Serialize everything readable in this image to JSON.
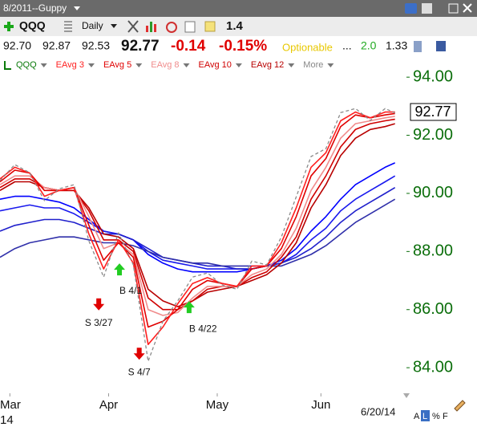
{
  "ui": {
    "window_title": "8/2011--Guppy",
    "symbol": "QQQ",
    "period": "Daily",
    "toolbar_value": "1.4",
    "quote": {
      "open": "92.70",
      "high": "92.87",
      "low": "92.53",
      "last": "92.77",
      "change": "-0.14",
      "change_pct": "-0.15%",
      "optionable": "Optionable",
      "dots": "...",
      "stat1": "2.0",
      "stat2": "1.33"
    },
    "more": "More",
    "year_label": "14",
    "date_label": "6/20/14",
    "scale_buttons": [
      "A",
      "L",
      "%",
      "F"
    ]
  },
  "chart_data": {
    "type": "line",
    "x": [
      0,
      3,
      6,
      9,
      12,
      15,
      18,
      21,
      24,
      27,
      30,
      33,
      36,
      39,
      42,
      45,
      48,
      51,
      54,
      57,
      60,
      63,
      66,
      69,
      72,
      75,
      78,
      80
    ],
    "xlim": [
      0,
      82
    ],
    "xticks": [
      {
        "value": 2,
        "label": "Mar"
      },
      {
        "value": 22,
        "label": "Apr"
      },
      {
        "value": 44,
        "label": "May"
      },
      {
        "value": 65,
        "label": "Jun"
      }
    ],
    "ylim": [
      83.12,
      94.17
    ],
    "yticks": [
      {
        "value": 84,
        "label": "84.00"
      },
      {
        "value": 86,
        "label": "86.00"
      },
      {
        "value": 88,
        "label": "88.00"
      },
      {
        "value": 90,
        "label": "90.00"
      },
      {
        "value": 92,
        "label": "92.00"
      },
      {
        "value": 94,
        "label": "94.00"
      }
    ],
    "axis_color": "#0b6e0b",
    "series": [
      {
        "name": "QQQ",
        "color": "#0a7a0a",
        "line_color": "#8a8a8a",
        "dashed": true,
        "values": [
          90.44,
          90.99,
          90.71,
          89.75,
          90.16,
          90.3,
          88.36,
          87.12,
          88.64,
          87.54,
          84.22,
          85.6,
          86.3,
          87.12,
          87.26,
          86.85,
          86.7,
          87.67,
          87.54,
          88.5,
          89.88,
          91.27,
          91.54,
          92.78,
          92.92,
          92.51,
          92.92,
          92.77
        ]
      },
      {
        "name": "EAvg 3",
        "color": "#ff2020",
        "values": [
          90.5,
          90.9,
          90.7,
          89.9,
          90.1,
          90.2,
          88.6,
          87.4,
          88.4,
          87.6,
          84.8,
          85.4,
          86.2,
          86.9,
          87.1,
          86.9,
          86.8,
          87.5,
          87.5,
          88.3,
          89.5,
          90.9,
          91.4,
          92.5,
          92.8,
          92.6,
          92.8,
          92.8
        ]
      },
      {
        "name": "EAvg 5",
        "color": "#e00000",
        "values": [
          90.4,
          90.8,
          90.7,
          90.1,
          90.1,
          90.2,
          88.9,
          87.7,
          88.3,
          87.8,
          85.4,
          85.6,
          86.0,
          86.7,
          87.0,
          86.9,
          86.8,
          87.4,
          87.5,
          88.1,
          89.2,
          90.6,
          91.2,
          92.3,
          92.7,
          92.6,
          92.7,
          92.75
        ]
      },
      {
        "name": "EAvg 8",
        "color": "#f08c8c",
        "values": [
          90.3,
          90.6,
          90.6,
          90.2,
          90.1,
          90.2,
          89.2,
          88.1,
          88.3,
          87.9,
          86.0,
          85.8,
          85.9,
          86.4,
          86.8,
          86.8,
          86.8,
          87.2,
          87.4,
          87.9,
          88.8,
          90.1,
          90.9,
          91.9,
          92.4,
          92.5,
          92.6,
          92.65
        ]
      },
      {
        "name": "EAvg 10",
        "color": "#d00000",
        "values": [
          90.2,
          90.5,
          90.5,
          90.2,
          90.1,
          90.1,
          89.4,
          88.4,
          88.4,
          88.0,
          86.4,
          86.0,
          86.0,
          86.3,
          86.7,
          86.8,
          86.8,
          87.1,
          87.3,
          87.8,
          88.5,
          89.8,
          90.6,
          91.6,
          92.2,
          92.4,
          92.5,
          92.55
        ]
      },
      {
        "name": "EAvg 12",
        "color": "#b80000",
        "values": [
          90.1,
          90.4,
          90.4,
          90.2,
          90.1,
          90.1,
          89.5,
          88.6,
          88.5,
          88.1,
          86.7,
          86.3,
          86.1,
          86.3,
          86.6,
          86.7,
          86.8,
          87.0,
          87.2,
          87.6,
          88.3,
          89.5,
          90.3,
          91.3,
          91.9,
          92.2,
          92.3,
          92.4
        ]
      },
      {
        "color": "#0000ff",
        "values": [
          89.8,
          89.9,
          89.9,
          89.8,
          89.7,
          89.5,
          89.1,
          88.7,
          88.6,
          88.4,
          87.9,
          87.6,
          87.4,
          87.3,
          87.3,
          87.3,
          87.3,
          87.4,
          87.5,
          87.7,
          88.1,
          88.7,
          89.2,
          89.8,
          90.3,
          90.6,
          90.9,
          91.05
        ]
      },
      {
        "color": "#1a1aee",
        "values": [
          89.4,
          89.5,
          89.6,
          89.5,
          89.5,
          89.3,
          89.0,
          88.7,
          88.6,
          88.4,
          88.0,
          87.7,
          87.6,
          87.5,
          87.4,
          87.4,
          87.4,
          87.4,
          87.5,
          87.6,
          87.9,
          88.4,
          88.8,
          89.4,
          89.8,
          90.1,
          90.4,
          90.6
        ]
      },
      {
        "color": "#2020cc",
        "values": [
          88.7,
          88.9,
          89.0,
          89.1,
          89.1,
          89.0,
          88.8,
          88.6,
          88.6,
          88.4,
          88.1,
          87.8,
          87.7,
          87.6,
          87.5,
          87.5,
          87.4,
          87.4,
          87.5,
          87.6,
          87.8,
          88.1,
          88.5,
          89.0,
          89.4,
          89.7,
          90.0,
          90.2
        ]
      },
      {
        "color": "#3030aa",
        "values": [
          87.8,
          88.1,
          88.3,
          88.4,
          88.5,
          88.5,
          88.4,
          88.3,
          88.3,
          88.2,
          88.0,
          87.8,
          87.7,
          87.6,
          87.6,
          87.5,
          87.5,
          87.5,
          87.5,
          87.5,
          87.7,
          87.9,
          88.2,
          88.6,
          89.0,
          89.3,
          89.6,
          89.8
        ]
      }
    ],
    "annotations": [
      {
        "text": "S 3/27",
        "x": 20,
        "y": 86.0,
        "arrow": "down",
        "color": "#e00000"
      },
      {
        "text": "B 4/1",
        "x": 24.2,
        "y": 87.4,
        "arrow": "up",
        "color": "#22cc22"
      },
      {
        "text": "S 4/7",
        "x": 28.2,
        "y": 84.3,
        "arrow": "down",
        "color": "#e00000"
      },
      {
        "text": "B 4/22",
        "x": 38.3,
        "y": 86.1,
        "arrow": "up",
        "color": "#22cc22"
      }
    ]
  }
}
